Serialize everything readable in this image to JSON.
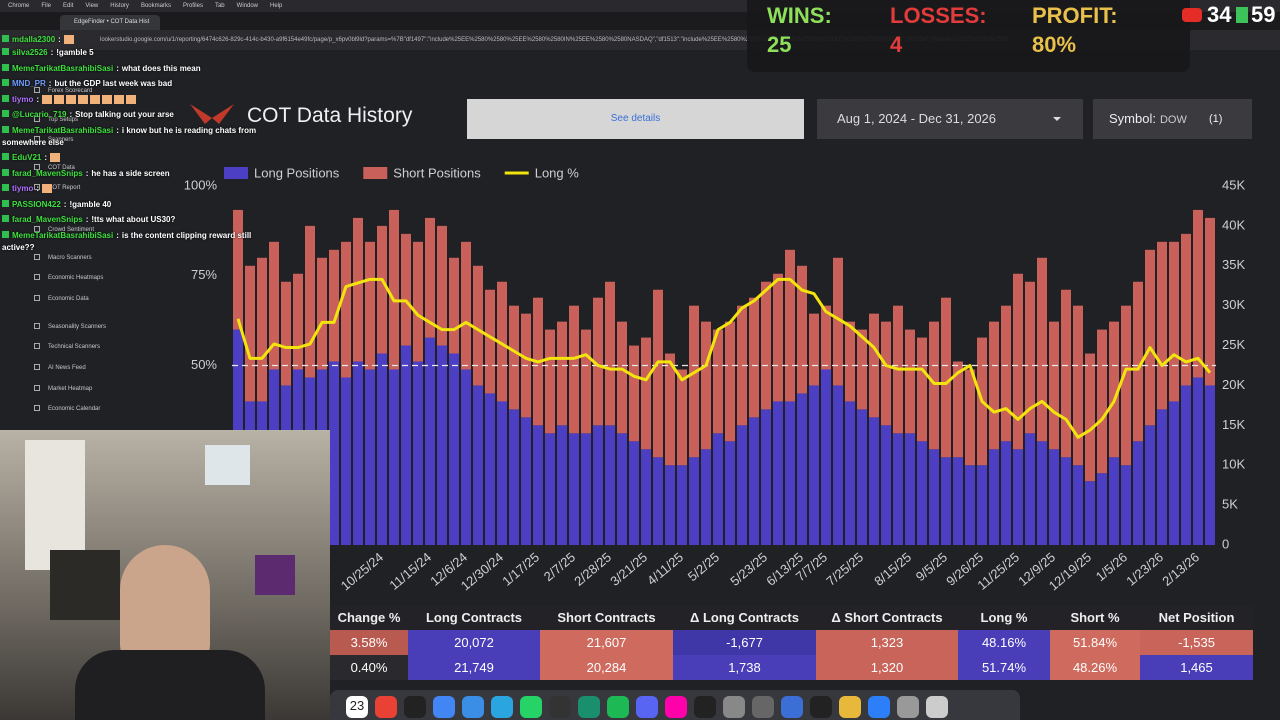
{
  "menu_bar": [
    "Chrome",
    "File",
    "Edit",
    "View",
    "History",
    "Bookmarks",
    "Profiles",
    "Tab",
    "Window",
    "Help"
  ],
  "tab_title": "EdgeFinder • COT Data Hist",
  "url": "lookerstudio.google.com/u/1/reporting/6474c626-829c-414c-b430-a9f6154e49fc/page/p_x6pv0bl9ld?params=%7B\"df1497\":\"include%25EE%2580%2580%25EE%2580%2580IN%25EE%2580%2580NASDAQ\",\"df1513\":\"include%25EE%2580%2580%25EE%2580%2580IN%25EE%2580%2580SPX500\",\"df1059\":\"include%25EE%2580%2580",
  "scoreboard": {
    "wins_label": "WINS:",
    "wins": "25",
    "losses_label": "LOSSES:",
    "losses": "4",
    "profit_label": "PROFIT:",
    "profit": "80%"
  },
  "viewers": "34",
  "viewers_extra": "59",
  "sidebar": [
    "Forex Scorecard",
    "Top Setups",
    "Scanners",
    "COT Data",
    "COT Report",
    "Crowd Sentiment",
    "Macro Scanners",
    "Economic Heatmaps",
    "Economic Data",
    "Seasonality Scanners",
    "Technical Scanners",
    "AI News Feed",
    "Market Heatmap",
    "Economic Calendar"
  ],
  "chat": {
    "separator": ":",
    "messages": [
      {
        "user": "mdalla2300",
        "color": "#3ee03e"
      },
      {
        "user": "silva2526",
        "color": "#3ee03e",
        "text": "!gamble 5"
      },
      {
        "user": "MemeTarikatBasrahibiSasi",
        "color": "#3ee03e",
        "text": "what does this mean"
      },
      {
        "user": "MND_PR",
        "color": "#6f9cff",
        "text": "but the GDP last week was bad"
      },
      {
        "user": "tiymo",
        "color": "#b070ff"
      },
      {
        "user": "@Lucario_719",
        "color": "#3ee03e",
        "text": "Stop talking out your arse"
      },
      {
        "user": "MemeTarikatBasrahibiSasi",
        "color": "#3ee03e",
        "text": "i know but he is reading chats from somewhere else"
      },
      {
        "user": "EduV21",
        "color": "#3ee03e"
      },
      {
        "user": "farad_MavenSnips",
        "color": "#3ee03e",
        "text": "he has a side screen"
      },
      {
        "user": "tiymo",
        "color": "#b070ff"
      },
      {
        "user": "PASSION422",
        "color": "#3ee03e",
        "text": "!gamble 40"
      },
      {
        "user": "farad_MavenSnips",
        "color": "#3ee03e",
        "text": "!tts what about US30?"
      },
      {
        "user": "MemeTarikatBasrahibiSasi",
        "color": "#3ee03e",
        "text": "is the content clipping reward still active??"
      }
    ]
  },
  "header": {
    "title": "COT Data History",
    "details": "See details",
    "date_range": "Aug 1, 2024 - Dec 31, 2026",
    "symbol_label": "Symbol:",
    "symbol": "DOW",
    "count": "(1)"
  },
  "chart_data": {
    "type": "bar",
    "stacked": true,
    "legend": "top-left",
    "categories": [
      null,
      null,
      null,
      null,
      null,
      null,
      null,
      null,
      null,
      null,
      null,
      null,
      "10/25/24",
      null,
      null,
      null,
      "11/15/24",
      null,
      null,
      "12/6/24",
      null,
      null,
      "12/30/24",
      null,
      null,
      "1/17/25",
      null,
      null,
      "2/7/25",
      null,
      null,
      "2/28/25",
      null,
      null,
      "3/21/25",
      null,
      null,
      "4/11/25",
      null,
      null,
      "5/2/25",
      null,
      null,
      null,
      "5/23/25",
      null,
      null,
      "6/13/25",
      null,
      "7/7/25",
      null,
      null,
      "7/25/25",
      null,
      null,
      null,
      "8/15/25",
      null,
      null,
      "9/5/25",
      null,
      null,
      "9/26/25",
      null,
      null,
      "11/25/25",
      null,
      null,
      "12/9/25",
      null,
      null,
      "12/19/25",
      null,
      null,
      "1/5/26",
      null,
      null,
      "1/23/26",
      null,
      null,
      "2/13/26",
      null
    ],
    "series": [
      {
        "name": "Long Positions",
        "color": "#4c3fc4",
        "values": [
          27000,
          18000,
          18000,
          22000,
          20000,
          22000,
          21000,
          22000,
          23000,
          21000,
          23000,
          22000,
          24000,
          22000,
          25000,
          23000,
          26000,
          25000,
          24000,
          22000,
          20000,
          19000,
          18000,
          17000,
          16000,
          15000,
          14000,
          15000,
          14000,
          14000,
          15000,
          15000,
          14000,
          13000,
          12000,
          11000,
          10000,
          10000,
          11000,
          12000,
          14000,
          13000,
          15000,
          16000,
          17000,
          18000,
          18000,
          19000,
          20000,
          22000,
          20000,
          18000,
          17000,
          16000,
          15000,
          14000,
          14000,
          13000,
          12000,
          11000,
          11000,
          10000,
          10000,
          12000,
          13000,
          12000,
          14000,
          13000,
          12000,
          11000,
          10000,
          8000,
          9000,
          11000,
          10000,
          13000,
          15000,
          17000,
          18000,
          20000,
          21000,
          20000
        ]
      },
      {
        "name": "Short Positions",
        "color": "#c9605a",
        "values": [
          15000,
          17000,
          18000,
          16000,
          13000,
          12000,
          19000,
          14000,
          14000,
          17000,
          18000,
          16000,
          16000,
          20000,
          14000,
          15000,
          15000,
          15000,
          12000,
          16000,
          15000,
          13000,
          15000,
          13000,
          13000,
          16000,
          13000,
          13000,
          16000,
          13000,
          16000,
          18000,
          14000,
          12000,
          14000,
          21000,
          14000,
          12000,
          19000,
          16000,
          13000,
          15000,
          15000,
          15000,
          16000,
          16000,
          19000,
          16000,
          9000,
          8000,
          16000,
          10000,
          10000,
          13000,
          13000,
          16000,
          13000,
          13000,
          16000,
          20000,
          12000,
          12000,
          16000,
          16000,
          17000,
          22000,
          19000,
          23000,
          16000,
          21000,
          20000,
          16000,
          18000,
          17000,
          20000,
          20000,
          22000,
          21000,
          20000,
          19000,
          21000,
          21000
        ]
      },
      {
        "name": "Long %",
        "type": "line",
        "axis": "y2",
        "color": "#f2e40c",
        "values": [
          63,
          52,
          52,
          56,
          55,
          55,
          56,
          62,
          62,
          72,
          73,
          74,
          74,
          68,
          68,
          64,
          62,
          60,
          60,
          62,
          60,
          58,
          56,
          54,
          52,
          51,
          52,
          52,
          52,
          53,
          50,
          49,
          49,
          47,
          46,
          51,
          51,
          46,
          48,
          50,
          60,
          62,
          66,
          68,
          71,
          74,
          74,
          71,
          70,
          65,
          63,
          61,
          58,
          55,
          50,
          49,
          49,
          49,
          45,
          45,
          48,
          50,
          40,
          37,
          38,
          35,
          38,
          40,
          37,
          35,
          30,
          32,
          35,
          40,
          49,
          49,
          55,
          50,
          53,
          51,
          52,
          48
        ]
      }
    ],
    "ylim": [
      0,
      45000
    ],
    "yticks": [
      0,
      {
        "value": 5000,
        "label": "5K"
      },
      {
        "value": 10000,
        "label": "10K"
      },
      {
        "value": 15000,
        "label": "15K"
      },
      {
        "value": 20000,
        "label": "20K"
      },
      {
        "value": 25000,
        "label": "25K"
      },
      {
        "value": 30000,
        "label": "30K"
      },
      {
        "value": 35000,
        "label": "35K"
      },
      {
        "value": 40000,
        "label": "40K"
      },
      {
        "value": 45000,
        "label": "45K"
      }
    ],
    "y2lim": [
      0,
      100
    ],
    "y2ticks": [
      {
        "value": 50,
        "label": "50%"
      },
      {
        "value": 75,
        "label": "75%"
      },
      {
        "value": 100,
        "label": "100%"
      }
    ],
    "y2_reference_line": 50
  },
  "table": {
    "columns": [
      "Change %",
      "Long Contracts",
      "Short Contracts",
      "Δ Long Contracts",
      "Δ Short Contracts",
      "Long %",
      "Short %",
      "Net Position"
    ],
    "rows": [
      [
        "3.58%",
        "20,072",
        "21,607",
        "-1,677",
        "1,323",
        "48.16%",
        "51.84%",
        "-1,535"
      ],
      [
        "0.40%",
        "21,749",
        "20,284",
        "1,738",
        "1,320",
        "51.74%",
        "48.26%",
        "1,465"
      ]
    ]
  },
  "dock_date": "23"
}
